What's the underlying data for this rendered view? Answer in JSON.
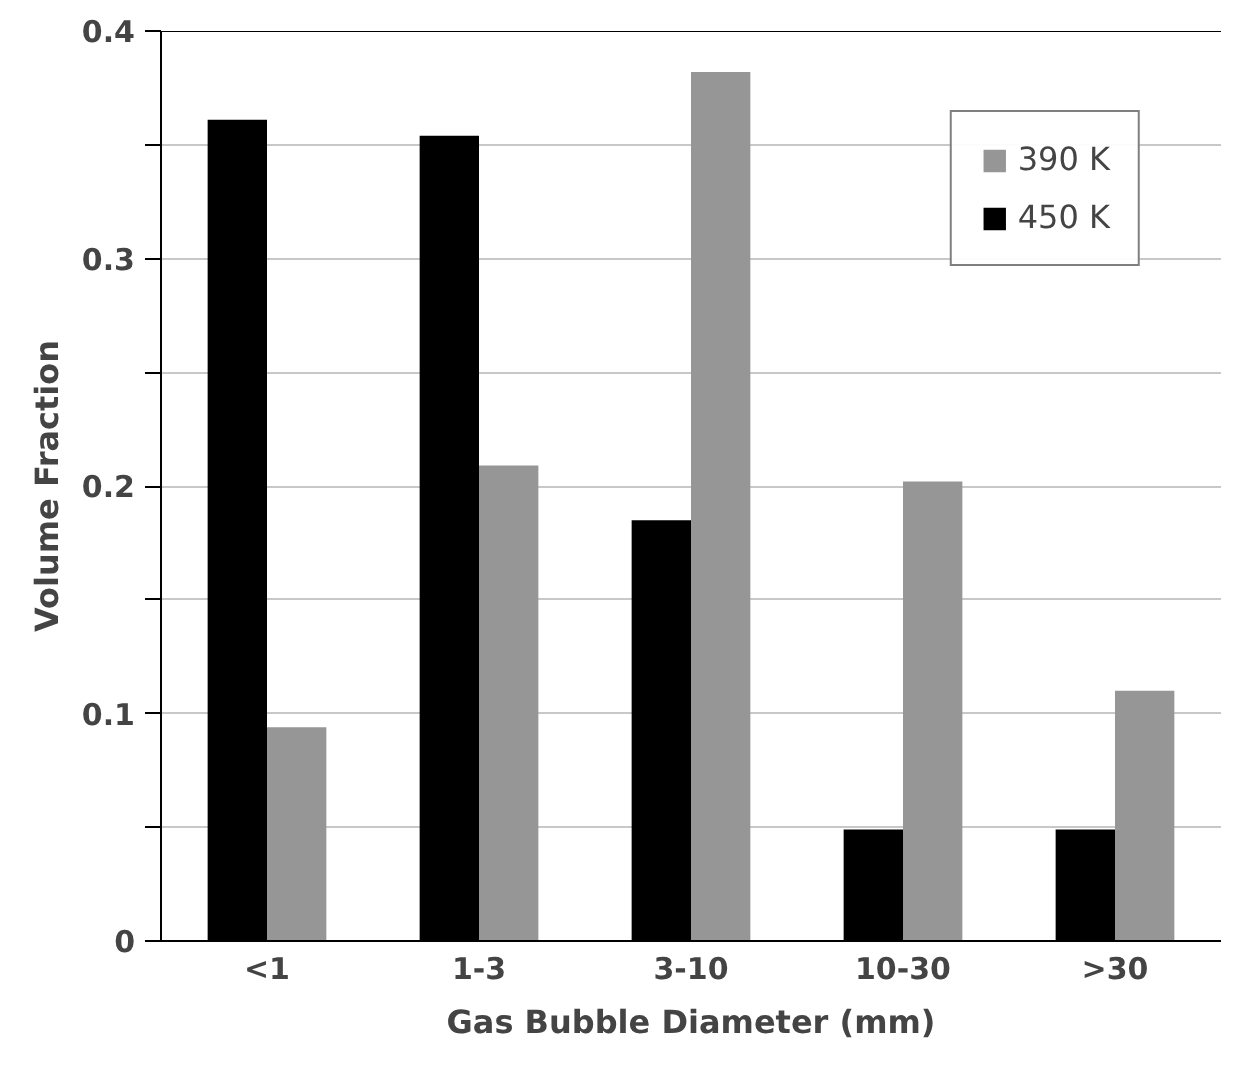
{
  "chart_data": {
    "type": "bar",
    "xlabel": "Gas Bubble Diameter (mm)",
    "ylabel": "Volume Fraction",
    "categories": [
      "<1",
      "1-3",
      "3-10",
      "10-30",
      ">30"
    ],
    "series": [
      {
        "name": "450 K",
        "color": "#000000",
        "values": [
          0.361,
          0.354,
          0.185,
          0.049,
          0.049
        ]
      },
      {
        "name": "390 K",
        "color": "#969696",
        "values": [
          0.094,
          0.209,
          0.382,
          0.202,
          0.11
        ]
      }
    ],
    "ylim": [
      0,
      0.4
    ],
    "yticks": [
      0,
      {
        "value": 0.05,
        "label": null
      },
      0.1,
      {
        "value": 0.15,
        "label": null
      },
      0.2,
      {
        "value": 0.25,
        "label": null
      },
      0.3,
      {
        "value": 0.35,
        "label": null
      },
      0.4
    ],
    "grid": "y",
    "legend": "top right"
  }
}
